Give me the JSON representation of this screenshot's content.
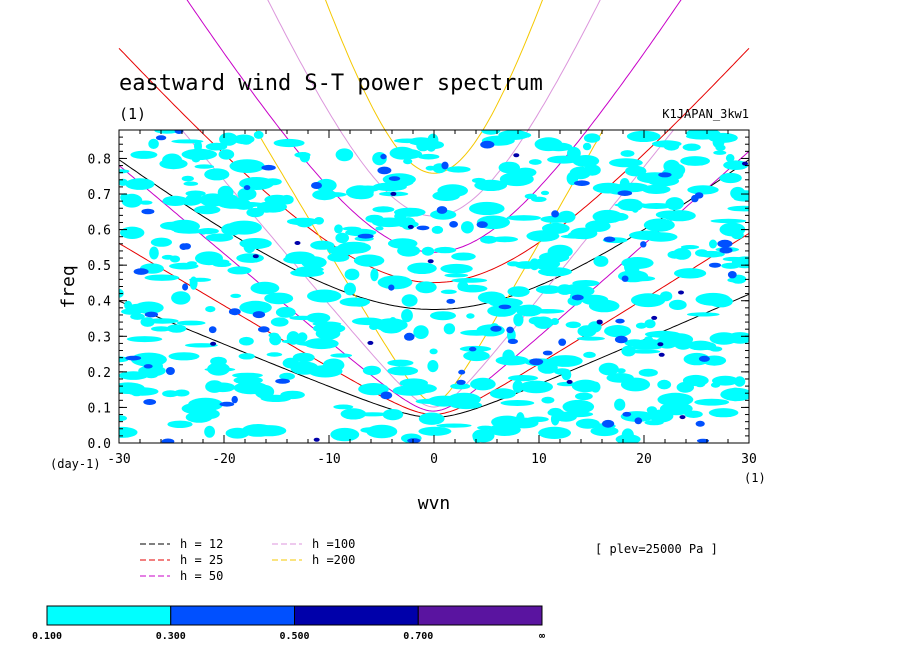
{
  "chart_data": {
    "type": "line",
    "title": "eastward wind S-T power spectrum",
    "subtitle_left": "(1)",
    "subtitle_right": "K1JAPAN_3kw1",
    "xlabel": "wvn",
    "ylabel": "freq",
    "x_unit": "(1)",
    "y_unit": "(day-1)",
    "xlim": [
      -30,
      30
    ],
    "ylim": [
      0,
      0.88
    ],
    "x_ticks": [
      "-30",
      "-20",
      "-10",
      "0",
      "10",
      "20",
      "30"
    ],
    "y_ticks": [
      "0.0",
      "0.1",
      "0.2",
      "0.3",
      "0.4",
      "0.5",
      "0.6",
      "0.7",
      "0.8"
    ],
    "plev_label": "[ plev=25000 Pa ]",
    "series": [
      {
        "name": "h = 12",
        "color": "#000000",
        "equivalent_depth_m": 12
      },
      {
        "name": "h = 25",
        "color": "#e60000",
        "equivalent_depth_m": 25
      },
      {
        "name": "h = 50",
        "color": "#c800c8",
        "equivalent_depth_m": 50
      },
      {
        "name": "h =100",
        "color": "#dc96dc",
        "equivalent_depth_m": 100
      },
      {
        "name": "h =200",
        "color": "#f5c800",
        "equivalent_depth_m": 200
      }
    ],
    "colorbar": {
      "labels": [
        "0.100",
        "0.300",
        "0.500",
        "0.700",
        "∞"
      ],
      "colors": [
        "#00ffff",
        "#0050ff",
        "#0000aa",
        "#5a14a0"
      ]
    }
  }
}
